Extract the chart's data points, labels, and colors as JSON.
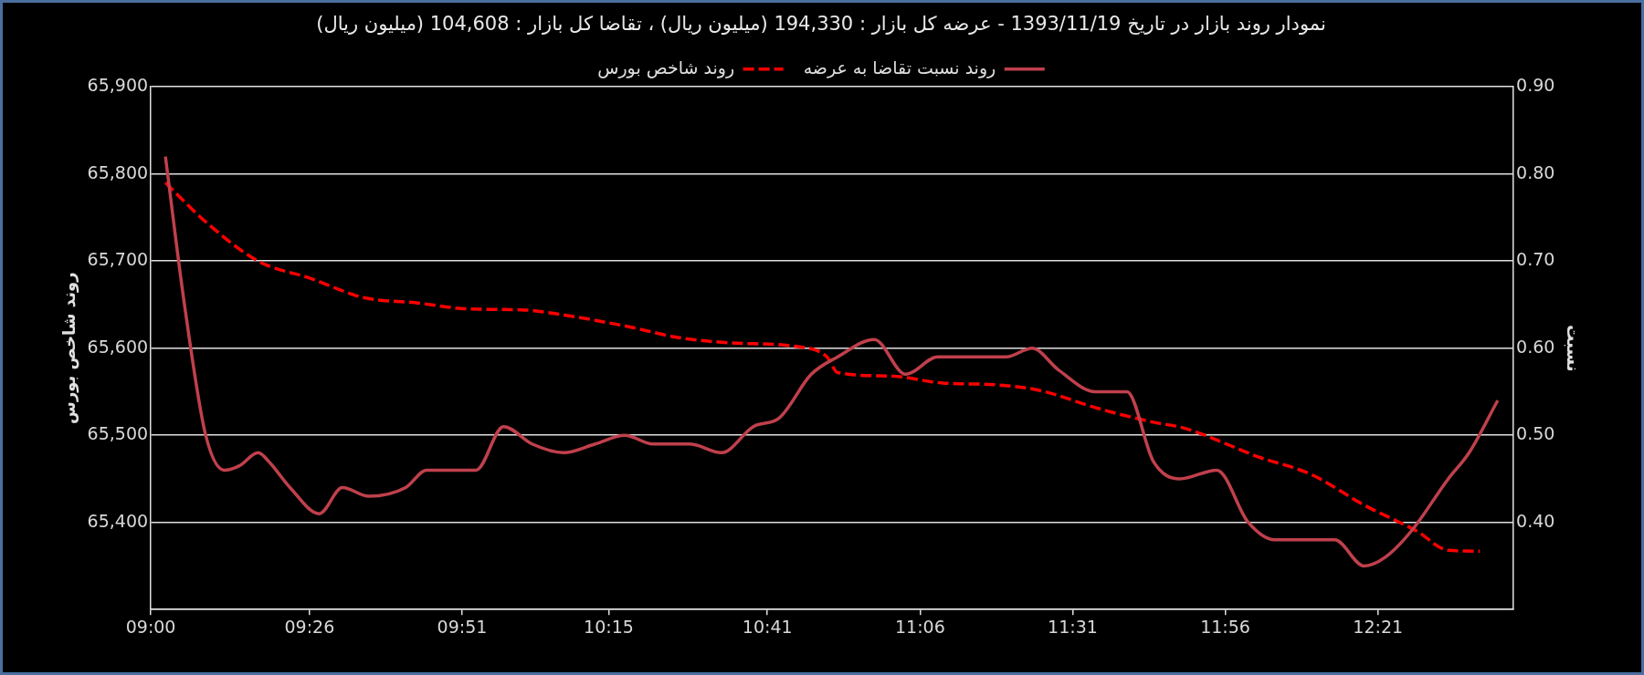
{
  "chart_data": {
    "type": "line",
    "title": "نمودار روند بازار در تاریخ 1393/11/19 - عرضه کل بازار : 194,330 (میلیون ریال) ، تقاضا کل بازار : 104,608 (میلیون ریال)",
    "ylabel": "روند شاخص بورس",
    "y2label": "نسبت",
    "legend": "top",
    "grid": "y",
    "marker": "none",
    "xlim": [
      9,
      12.72
    ],
    "xticks": [
      {
        "value": 9,
        "label": "09:00"
      },
      {
        "value": 9.4333,
        "label": "09:26"
      },
      {
        "value": 9.85,
        "label": "09:51"
      },
      {
        "value": 10.25,
        "label": "10:15"
      },
      {
        "value": 10.6833,
        "label": "10:41"
      },
      {
        "value": 11.1,
        "label": "11:06"
      },
      {
        "value": 11.5167,
        "label": "11:31"
      },
      {
        "value": 11.9333,
        "label": "11:56"
      },
      {
        "value": 12.35,
        "label": "12:21"
      }
    ],
    "ylim": [
      65300,
      65900
    ],
    "yticks": [
      {
        "value": 65300,
        "label": null
      },
      {
        "value": 65400,
        "label": "65,400"
      },
      {
        "value": 65500,
        "label": "65,500"
      },
      {
        "value": 65600,
        "label": "65,600"
      },
      {
        "value": 65700,
        "label": "65,700"
      },
      {
        "value": 65800,
        "label": "65,800"
      },
      {
        "value": 65900,
        "label": "65,900"
      }
    ],
    "y2lim": [
      0.3,
      0.9
    ],
    "y2ticks": [
      {
        "value": 0.3,
        "label": null
      },
      {
        "value": 0.4,
        "label": "0.40"
      },
      {
        "value": 0.5,
        "label": "0.50"
      },
      {
        "value": 0.6,
        "label": "0.60"
      },
      {
        "value": 0.7,
        "label": "0.70"
      },
      {
        "value": 0.8,
        "label": "0.80"
      },
      {
        "value": 0.9,
        "label": "0.90"
      }
    ],
    "series": [
      {
        "name": "روند نسبت تقاضا به عرضه",
        "axis": "y2",
        "color": "#c0404c",
        "line_style": "solid",
        "x": [
          9.04,
          9.092,
          9.15,
          9.201,
          9.242,
          9.293,
          9.322,
          9.38,
          9.46,
          9.523,
          9.595,
          9.696,
          9.753,
          9.888,
          9.963,
          10.041,
          10.127,
          10.213,
          10.294,
          10.371,
          10.472,
          10.558,
          10.645,
          10.716,
          10.803,
          10.875,
          10.975,
          11.061,
          11.148,
          11.335,
          11.406,
          11.478,
          11.579,
          11.665,
          11.737,
          11.809,
          11.91,
          11.996,
          12.068,
          12.232,
          12.312,
          12.37,
          12.441,
          12.542,
          12.599,
          12.677
        ],
        "values": [
          0.82,
          0.65,
          0.5,
          0.46,
          0.465,
          0.48,
          0.47,
          0.44,
          0.41,
          0.44,
          0.43,
          0.44,
          0.46,
          0.46,
          0.51,
          0.49,
          0.48,
          0.49,
          0.5,
          0.49,
          0.49,
          0.48,
          0.51,
          0.52,
          0.57,
          0.59,
          0.61,
          0.57,
          0.59,
          0.59,
          0.6,
          0.575,
          0.55,
          0.55,
          0.47,
          0.45,
          0.46,
          0.4,
          0.38,
          0.38,
          0.35,
          0.36,
          0.39,
          0.45,
          0.48,
          0.54
        ]
      },
      {
        "name": "روند شاخص بورس",
        "axis": "y",
        "color": "#ff0000",
        "line_style": "dashed",
        "x": [
          9.04,
          9.15,
          9.293,
          9.437,
          9.581,
          9.725,
          9.868,
          10.012,
          10.098,
          10.3,
          10.443,
          10.587,
          10.76,
          10.846,
          10.875,
          11.018,
          11.162,
          11.306,
          11.421,
          11.593,
          11.737,
          11.823,
          12.025,
          12.168,
          12.312,
          12.456,
          12.542,
          12.628
        ],
        "values": [
          65790,
          65745,
          65700,
          65680,
          65658,
          65652,
          65645,
          65644,
          65640,
          65625,
          65612,
          65606,
          65602,
          65590,
          65572,
          65568,
          65560,
          65558,
          65552,
          65530,
          65515,
          65508,
          65475,
          65455,
          65420,
          65390,
          65368,
          65367
        ]
      }
    ]
  }
}
